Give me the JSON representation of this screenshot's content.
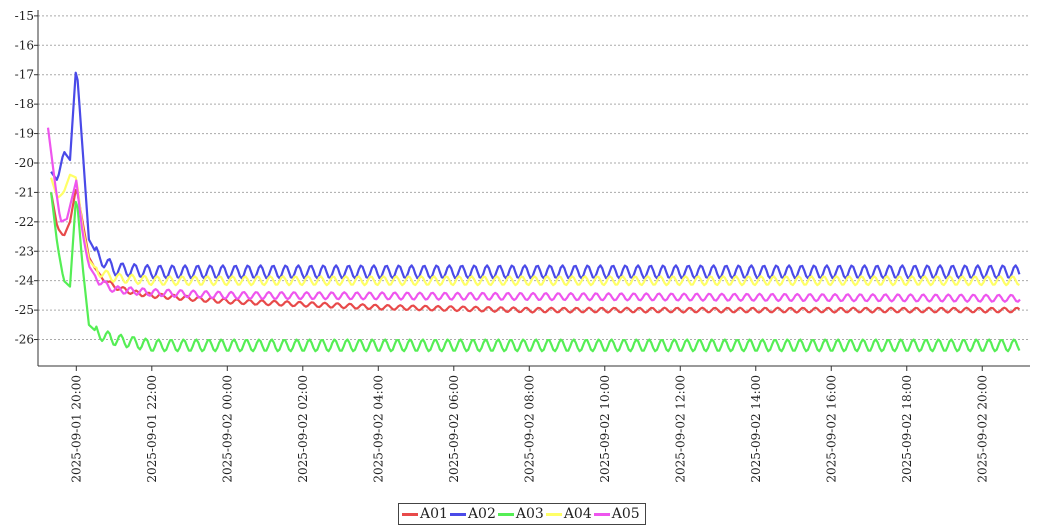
{
  "chart_data": {
    "type": "line",
    "title": "",
    "xlabel": "",
    "ylabel": "",
    "ylim": [
      -26.9,
      -14.8
    ],
    "xlim": [
      "2025-09-01 19:15",
      "2025-09-02 21:00"
    ],
    "grid": true,
    "legend_position": "bottom-center",
    "y_ticks": [
      -15,
      -16,
      -17,
      -18,
      -19,
      -20,
      -21,
      -22,
      -23,
      -24,
      -25,
      -26
    ],
    "x_ticks": [
      "2025-09-01 20:00",
      "2025-09-01 22:00",
      "2025-09-02 00:00",
      "2025-09-02 02:00",
      "2025-09-02 04:00",
      "2025-09-02 06:00",
      "2025-09-02 08:00",
      "2025-09-02 10:00",
      "2025-09-02 12:00",
      "2025-09-02 14:00",
      "2025-09-02 16:00",
      "2025-09-02 18:00",
      "2025-09-02 20:00"
    ],
    "series": [
      {
        "name": "A01",
        "color": "#e84a4a",
        "oscillation_amplitude": 0.08,
        "points": [
          [
            "2025-09-01 19:20",
            -21.0
          ],
          [
            "2025-09-01 19:30",
            -22.2
          ],
          [
            "2025-09-01 19:40",
            -22.5
          ],
          [
            "2025-09-01 19:50",
            -22.0
          ],
          [
            "2025-09-01 20:00",
            -20.8
          ],
          [
            "2025-09-01 20:10",
            -22.0
          ],
          [
            "2025-09-01 20:20",
            -23.2
          ],
          [
            "2025-09-01 20:35",
            -23.8
          ],
          [
            "2025-09-01 21:00",
            -24.2
          ],
          [
            "2025-09-01 21:30",
            -24.4
          ],
          [
            "2025-09-01 22:00",
            -24.5
          ],
          [
            "2025-09-02 00:00",
            -24.7
          ],
          [
            "2025-09-02 04:00",
            -24.9
          ],
          [
            "2025-09-02 08:00",
            -25.0
          ],
          [
            "2025-09-02 21:00",
            -25.0
          ]
        ]
      },
      {
        "name": "A02",
        "color": "#4a4ae8",
        "oscillation_amplitude": 0.22,
        "points": [
          [
            "2025-09-01 19:20",
            -20.3
          ],
          [
            "2025-09-01 19:30",
            -20.6
          ],
          [
            "2025-09-01 19:40",
            -19.6
          ],
          [
            "2025-09-01 19:50",
            -19.9
          ],
          [
            "2025-09-01 20:00",
            -16.6
          ],
          [
            "2025-09-01 20:10",
            -19.5
          ],
          [
            "2025-09-01 20:20",
            -22.6
          ],
          [
            "2025-09-01 20:35",
            -23.2
          ],
          [
            "2025-09-01 21:00",
            -23.6
          ],
          [
            "2025-09-01 22:00",
            -23.7
          ],
          [
            "2025-09-02 21:00",
            -23.7
          ]
        ]
      },
      {
        "name": "A03",
        "color": "#55ee55",
        "oscillation_amplitude": 0.2,
        "points": [
          [
            "2025-09-01 19:20",
            -21.0
          ],
          [
            "2025-09-01 19:30",
            -22.8
          ],
          [
            "2025-09-01 19:40",
            -24.0
          ],
          [
            "2025-09-01 19:50",
            -24.2
          ],
          [
            "2025-09-01 20:00",
            -21.0
          ],
          [
            "2025-09-01 20:10",
            -23.5
          ],
          [
            "2025-09-01 20:20",
            -25.5
          ],
          [
            "2025-09-01 20:35",
            -25.8
          ],
          [
            "2025-09-01 21:00",
            -26.0
          ],
          [
            "2025-09-01 22:00",
            -26.2
          ],
          [
            "2025-09-02 21:00",
            -26.2
          ]
        ]
      },
      {
        "name": "A04",
        "color": "#ffff66",
        "oscillation_amplitude": 0.15,
        "points": [
          [
            "2025-09-01 19:20",
            -20.5
          ],
          [
            "2025-09-01 19:30",
            -21.2
          ],
          [
            "2025-09-01 19:40",
            -21.0
          ],
          [
            "2025-09-01 19:50",
            -20.4
          ],
          [
            "2025-09-01 20:00",
            -20.5
          ],
          [
            "2025-09-01 20:10",
            -22.2
          ],
          [
            "2025-09-01 20:20",
            -23.3
          ],
          [
            "2025-09-01 20:35",
            -23.7
          ],
          [
            "2025-09-01 21:00",
            -23.9
          ],
          [
            "2025-09-01 22:00",
            -24.0
          ],
          [
            "2025-09-02 21:00",
            -24.0
          ]
        ]
      },
      {
        "name": "A05",
        "color": "#ee55ee",
        "oscillation_amplitude": 0.12,
        "points": [
          [
            "2025-09-01 19:15",
            -18.8
          ],
          [
            "2025-09-01 19:25",
            -20.5
          ],
          [
            "2025-09-01 19:35",
            -22.0
          ],
          [
            "2025-09-01 19:45",
            -21.9
          ],
          [
            "2025-09-01 20:00",
            -20.6
          ],
          [
            "2025-09-01 20:10",
            -22.4
          ],
          [
            "2025-09-01 20:20",
            -23.5
          ],
          [
            "2025-09-01 20:35",
            -24.0
          ],
          [
            "2025-09-01 21:00",
            -24.3
          ],
          [
            "2025-09-01 22:00",
            -24.4
          ],
          [
            "2025-09-02 00:00",
            -24.5
          ],
          [
            "2025-09-02 21:00",
            -24.6
          ]
        ]
      }
    ]
  }
}
